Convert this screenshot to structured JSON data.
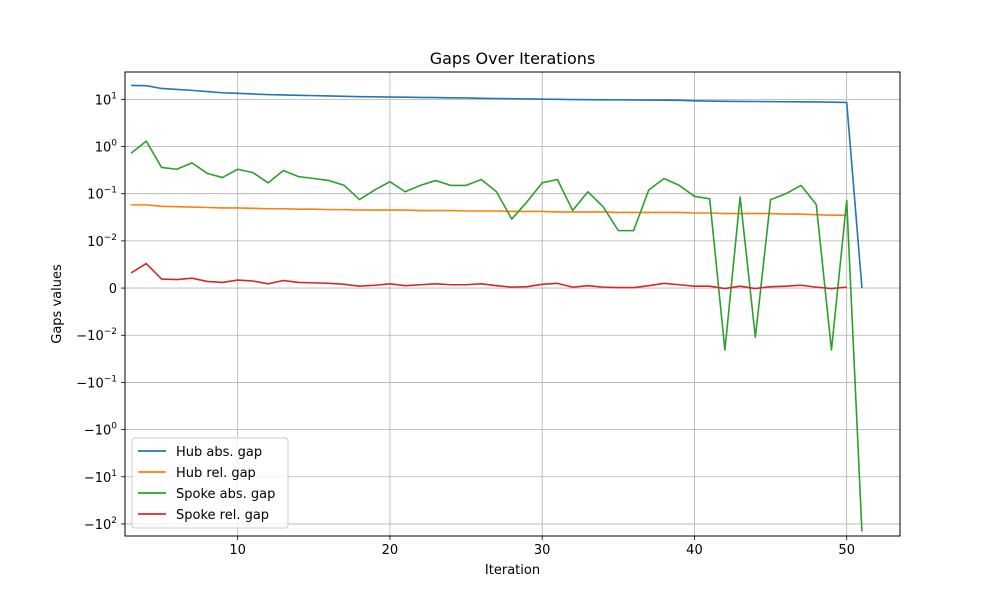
{
  "chart_data": {
    "type": "line",
    "title": "Gaps Over Iterations",
    "xlabel": "Iteration",
    "ylabel": "Gaps values",
    "xlim": [
      2.6,
      53.5
    ],
    "ylim": [
      -180,
      38
    ],
    "y_scale": "symlog",
    "y_linthresh": 0.01,
    "grid": true,
    "legend_position": "lower-left",
    "x_ticks": [
      {
        "value": 10,
        "label": "10"
      },
      {
        "value": 20,
        "label": "20"
      },
      {
        "value": 30,
        "label": "30"
      },
      {
        "value": 40,
        "label": "40"
      },
      {
        "value": 50,
        "label": "50"
      }
    ],
    "y_ticks": [
      {
        "value": 10,
        "label": "10",
        "exp": "1",
        "sign": ""
      },
      {
        "value": 1,
        "label": "10",
        "exp": "0",
        "sign": ""
      },
      {
        "value": 0.1,
        "label": "10",
        "exp": "−1",
        "sign": ""
      },
      {
        "value": 0.01,
        "label": "10",
        "exp": "−2",
        "sign": ""
      },
      {
        "value": 0,
        "label": "0",
        "exp": "",
        "sign": ""
      },
      {
        "value": -0.01,
        "label": "10",
        "exp": "−2",
        "sign": "−"
      },
      {
        "value": -0.1,
        "label": "10",
        "exp": "−1",
        "sign": "−"
      },
      {
        "value": -1,
        "label": "10",
        "exp": "0",
        "sign": "−"
      },
      {
        "value": -10,
        "label": "10",
        "exp": "1",
        "sign": "−"
      },
      {
        "value": -100,
        "label": "10",
        "exp": "2",
        "sign": "−"
      }
    ],
    "series": [
      {
        "name": "Hub abs. gap",
        "color": "#1f77b4",
        "x": [
          3,
          4,
          5,
          6,
          7,
          8,
          9,
          10,
          11,
          12,
          13,
          14,
          15,
          16,
          17,
          18,
          19,
          20,
          21,
          22,
          23,
          24,
          25,
          26,
          27,
          28,
          29,
          30,
          31,
          32,
          33,
          34,
          35,
          36,
          37,
          38,
          39,
          40,
          41,
          42,
          43,
          44,
          45,
          46,
          47,
          48,
          49,
          50,
          51
        ],
        "values": [
          19.7,
          19.5,
          17.0,
          16.2,
          15.5,
          14.6,
          13.8,
          13.4,
          13.0,
          12.6,
          12.4,
          12.2,
          12.0,
          11.8,
          11.6,
          11.4,
          11.3,
          11.2,
          11.1,
          11.0,
          10.9,
          10.8,
          10.7,
          10.5,
          10.4,
          10.3,
          10.2,
          10.1,
          10.0,
          9.9,
          9.85,
          9.8,
          9.75,
          9.7,
          9.65,
          9.6,
          9.55,
          9.3,
          9.2,
          9.1,
          9.05,
          9.0,
          8.95,
          8.9,
          8.85,
          8.8,
          8.7,
          8.6,
          0.0
        ]
      },
      {
        "name": "Hub rel. gap",
        "color": "#ff7f0e",
        "x": [
          3,
          4,
          5,
          6,
          7,
          8,
          9,
          10,
          11,
          12,
          13,
          14,
          15,
          16,
          17,
          18,
          19,
          20,
          21,
          22,
          23,
          24,
          25,
          26,
          27,
          28,
          29,
          30,
          31,
          32,
          33,
          34,
          35,
          36,
          37,
          38,
          39,
          40,
          41,
          42,
          43,
          44,
          45,
          46,
          47,
          48,
          49,
          50
        ],
        "values": [
          0.058,
          0.058,
          0.054,
          0.053,
          0.052,
          0.051,
          0.05,
          0.05,
          0.049,
          0.048,
          0.048,
          0.047,
          0.047,
          0.046,
          0.046,
          0.045,
          0.045,
          0.045,
          0.045,
          0.044,
          0.044,
          0.044,
          0.043,
          0.043,
          0.043,
          0.042,
          0.042,
          0.042,
          0.041,
          0.041,
          0.041,
          0.041,
          0.04,
          0.04,
          0.04,
          0.04,
          0.04,
          0.039,
          0.039,
          0.038,
          0.038,
          0.038,
          0.038,
          0.037,
          0.037,
          0.036,
          0.035,
          0.035
        ]
      },
      {
        "name": "Spoke abs. gap",
        "color": "#2ca02c",
        "x": [
          3,
          4,
          5,
          6,
          7,
          8,
          9,
          10,
          11,
          12,
          13,
          14,
          15,
          16,
          17,
          18,
          19,
          20,
          21,
          22,
          23,
          24,
          25,
          26,
          27,
          28,
          29,
          30,
          31,
          32,
          33,
          34,
          35,
          36,
          37,
          38,
          39,
          40,
          41,
          42,
          43,
          44,
          45,
          46,
          47,
          48,
          49,
          50,
          51
        ],
        "values": [
          0.72,
          1.3,
          0.36,
          0.33,
          0.45,
          0.27,
          0.22,
          0.33,
          0.28,
          0.17,
          0.31,
          0.23,
          0.21,
          0.19,
          0.15,
          0.075,
          0.12,
          0.18,
          0.11,
          0.15,
          0.19,
          0.15,
          0.15,
          0.2,
          0.11,
          0.029,
          0.067,
          0.17,
          0.2,
          0.044,
          0.11,
          0.053,
          0.0165,
          0.0165,
          0.12,
          0.21,
          0.15,
          0.088,
          0.078,
          -0.0205,
          0.085,
          -0.011,
          0.075,
          0.1,
          0.15,
          0.059,
          -0.0205,
          0.072,
          -145
        ]
      },
      {
        "name": "Spoke rel. gap",
        "color": "#d62728",
        "x": [
          3,
          4,
          5,
          6,
          7,
          8,
          9,
          10,
          11,
          12,
          13,
          14,
          15,
          16,
          17,
          18,
          19,
          20,
          21,
          22,
          23,
          24,
          25,
          26,
          27,
          28,
          29,
          30,
          31,
          32,
          33,
          34,
          35,
          36,
          37,
          38,
          39,
          40,
          41,
          42,
          43,
          44,
          45,
          46,
          47,
          48,
          49,
          50
        ],
        "values": [
          0.0032,
          0.0052,
          0.0019,
          0.0018,
          0.0021,
          0.0014,
          0.0012,
          0.0017,
          0.0015,
          0.0009,
          0.0016,
          0.0012,
          0.0011,
          0.001,
          0.0008,
          0.0004,
          0.0006,
          0.0009,
          0.0005,
          0.0007,
          0.0009,
          0.0007,
          0.0007,
          0.0009,
          0.0005,
          0.0002,
          0.0003,
          0.0008,
          0.001,
          0.0002,
          0.0005,
          0.0002,
          0.0001,
          0.0001,
          0.0005,
          0.001,
          0.0007,
          0.0004,
          0.0004,
          -0.0001,
          0.0004,
          -0.0001,
          0.0003,
          0.0004,
          0.0006,
          0.0002,
          -0.0001,
          0.0002
        ]
      }
    ]
  }
}
